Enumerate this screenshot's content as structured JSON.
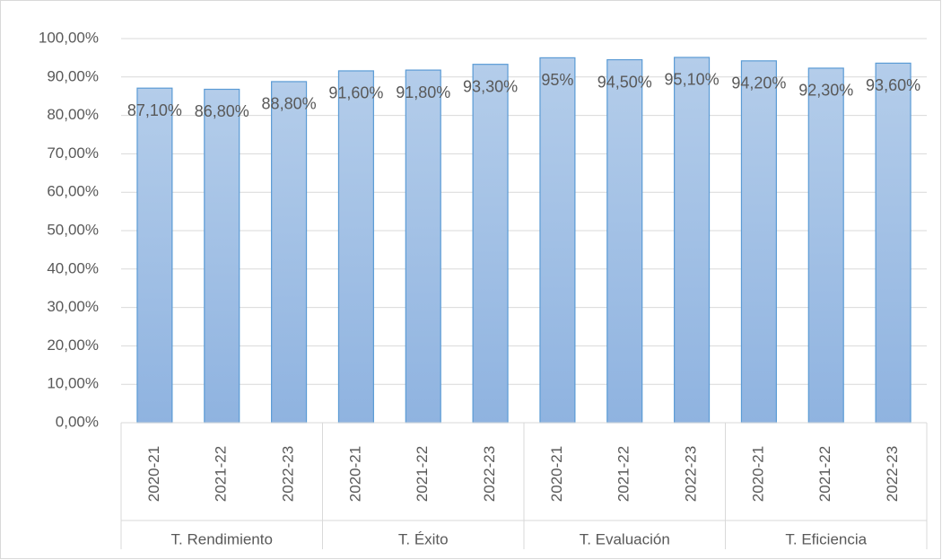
{
  "chart_data": {
    "type": "bar",
    "categories": [
      "2020-21",
      "2021-22",
      "2022-23",
      "2020-21",
      "2021-22",
      "2022-23",
      "2020-21",
      "2021-22",
      "2022-23",
      "2020-21",
      "2021-22",
      "2022-23"
    ],
    "category_groups": [
      "T. Rendimiento",
      "T. Éxito",
      "T. Evaluación",
      "T. Eficiencia"
    ],
    "values": [
      87.1,
      86.8,
      88.8,
      91.6,
      91.8,
      93.3,
      95,
      94.5,
      95.1,
      94.2,
      92.3,
      93.6
    ],
    "value_labels": [
      "87,10%",
      "86,80%",
      "88,80%",
      "91,60%",
      "91,80%",
      "93,30%",
      "95%",
      "94,50%",
      "95,10%",
      "94,20%",
      "92,30%",
      "93,60%"
    ],
    "color": "#9dc3e6",
    "ylim": [
      0,
      100
    ],
    "yticks": [
      {
        "value": 0,
        "label": "0,00%"
      },
      {
        "value": 10,
        "label": "10,00%"
      },
      {
        "value": 20,
        "label": "20,00%"
      },
      {
        "value": 30,
        "label": "30,00%"
      },
      {
        "value": 40,
        "label": "40,00%"
      },
      {
        "value": 50,
        "label": "50,00%"
      },
      {
        "value": 60,
        "label": "60,00%"
      },
      {
        "value": 70,
        "label": "70,00%"
      },
      {
        "value": 80,
        "label": "80,00%"
      },
      {
        "value": 90,
        "label": "90,00%"
      },
      {
        "value": 100,
        "label": "100,00%"
      }
    ],
    "grid": true
  }
}
